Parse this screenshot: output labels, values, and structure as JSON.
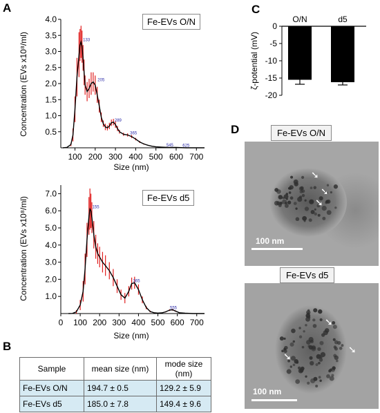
{
  "panels": {
    "a": "A",
    "b": "B",
    "c": "C",
    "d": "D"
  },
  "panel_a": {
    "ylabel": "Concentration (EVs x10⁸/ml)",
    "xlabel": "Size (nm)",
    "top_legend": "Fe-EVs O/N",
    "bottom_legend": "Fe-EVs d5"
  },
  "panel_b": {
    "headers": [
      "Sample",
      "mean size (nm)",
      "mode size (nm)"
    ],
    "rows": [
      [
        "Fe-EVs O/N",
        "194.7 ± 0.5",
        "129.2 ± 5.9"
      ],
      [
        "Fe-EVs d5",
        "185.0 ± 7.8",
        "149.4 ± 9.6"
      ]
    ]
  },
  "panel_d": {
    "top_label": "Fe-EVs O/N",
    "bottom_label": "Fe-EVs d5",
    "scale_top": "100 nm",
    "scale_bottom": "100 nm"
  },
  "chart_data": [
    {
      "id": "nta-on",
      "type": "line",
      "xlabel": "Size (nm)",
      "ylabel": "Concentration (EVs x10⁸/ml)",
      "xlim": [
        30,
        740
      ],
      "ylim": [
        0,
        4.0
      ],
      "xticks": [
        100,
        200,
        300,
        400,
        500,
        600,
        700
      ],
      "yticks": [
        0.5,
        1.0,
        1.5,
        2.0,
        2.5,
        3.0,
        3.5,
        4.0
      ],
      "ytick_labels": [
        "0.5",
        "1.0",
        "1.5",
        "2.0",
        "2.5",
        "3.0",
        "3.5",
        "4.0"
      ],
      "x": [
        40,
        60,
        80,
        90,
        100,
        110,
        120,
        125,
        130,
        135,
        140,
        145,
        150,
        160,
        170,
        180,
        190,
        200,
        210,
        220,
        230,
        240,
        250,
        260,
        270,
        280,
        290,
        300,
        310,
        320,
        340,
        360,
        380,
        400,
        420,
        440,
        460,
        480,
        500,
        530,
        560,
        600,
        650,
        700,
        740
      ],
      "y": [
        0,
        0.01,
        0.1,
        0.4,
        1.2,
        2.2,
        2.9,
        3.2,
        3.3,
        3.15,
        2.8,
        2.35,
        1.95,
        1.75,
        1.85,
        2.0,
        2.05,
        1.95,
        1.65,
        1.3,
        0.95,
        0.75,
        0.65,
        0.62,
        0.68,
        0.78,
        0.8,
        0.72,
        0.6,
        0.5,
        0.42,
        0.4,
        0.35,
        0.27,
        0.18,
        0.12,
        0.08,
        0.05,
        0.03,
        0.02,
        0.01,
        0.01,
        0,
        0,
        0
      ],
      "err": [
        0,
        0,
        0.05,
        0.2,
        0.4,
        0.6,
        0.7,
        0.5,
        0.5,
        0.5,
        0.4,
        0.4,
        0.3,
        0.3,
        0.3,
        0.35,
        0.3,
        0.3,
        0.25,
        0.2,
        0.15,
        0.1,
        0.1,
        0.08,
        0.1,
        0.1,
        0.1,
        0.1,
        0.08,
        0.06,
        0.05,
        0.05,
        0.05,
        0.04,
        0.03,
        0.02,
        0.01,
        0.01,
        0,
        0,
        0,
        0,
        0,
        0,
        0
      ],
      "peak_labels": [
        {
          "x": 133,
          "y": 3.3,
          "text": "133"
        },
        {
          "x": 205,
          "y": 2.05,
          "text": "205"
        },
        {
          "x": 289,
          "y": 0.8,
          "text": "289"
        },
        {
          "x": 365,
          "y": 0.4,
          "text": "365"
        },
        {
          "x": 545,
          "y": 0.02,
          "text": "545"
        },
        {
          "x": 625,
          "y": 0.01,
          "text": "625"
        }
      ]
    },
    {
      "id": "nta-d5",
      "type": "line",
      "xlabel": "Size (nm)",
      "ylabel": "Concentration (EVs x10⁸/ml)",
      "xlim": [
        0,
        740
      ],
      "ylim": [
        0,
        7.5
      ],
      "xticks": [
        0,
        100,
        200,
        300,
        400,
        500,
        600,
        700
      ],
      "yticks": [
        1.0,
        2.0,
        3.0,
        4.0,
        5.0,
        6.0,
        7.0
      ],
      "ytick_labels": [
        "1.0",
        "2.0",
        "3.0",
        "4.0",
        "5.0",
        "6.0",
        "7.0"
      ],
      "x": [
        40,
        60,
        80,
        100,
        115,
        125,
        135,
        145,
        150,
        155,
        160,
        170,
        180,
        190,
        200,
        215,
        230,
        250,
        270,
        290,
        310,
        330,
        350,
        365,
        380,
        400,
        420,
        440,
        460,
        480,
        500,
        520,
        540,
        560,
        575,
        590,
        610,
        640,
        680,
        740
      ],
      "y": [
        0,
        0.01,
        0.1,
        0.5,
        1.3,
        2.6,
        4.3,
        5.7,
        6.1,
        6.0,
        5.6,
        4.6,
        3.9,
        3.5,
        3.3,
        3.0,
        2.8,
        2.5,
        2.1,
        1.6,
        1.1,
        0.9,
        1.3,
        1.75,
        1.8,
        1.4,
        0.8,
        0.35,
        0.12,
        0.05,
        0.03,
        0.04,
        0.1,
        0.2,
        0.22,
        0.15,
        0.05,
        0.02,
        0,
        0
      ],
      "err": [
        0,
        0,
        0.1,
        0.3,
        0.6,
        0.9,
        1.0,
        1.1,
        1.2,
        1.0,
        0.9,
        0.8,
        0.7,
        0.6,
        0.6,
        0.6,
        0.6,
        0.5,
        0.5,
        0.4,
        0.3,
        0.3,
        0.3,
        0.35,
        0.35,
        0.3,
        0.2,
        0.1,
        0.05,
        0.02,
        0.01,
        0.02,
        0.03,
        0.05,
        0.05,
        0.04,
        0.02,
        0.01,
        0,
        0
      ],
      "peak_labels": [
        {
          "x": 155,
          "y": 6.1,
          "text": "155"
        },
        {
          "x": 365,
          "y": 1.8,
          "text": "365"
        },
        {
          "x": 555,
          "y": 0.22,
          "text": "555"
        }
      ]
    },
    {
      "id": "zeta",
      "type": "bar",
      "ylabel": "ζ-potential (mV)",
      "categories": [
        "O/N",
        "d5"
      ],
      "values": [
        -15.5,
        -16.2
      ],
      "errors": [
        1.3,
        0.8
      ],
      "ylim": [
        -20,
        0
      ],
      "yticks": [
        0,
        -5,
        -10,
        -15,
        -20
      ],
      "ytick_labels": [
        "0",
        "-5",
        "-10",
        "-15",
        "-20"
      ]
    }
  ]
}
